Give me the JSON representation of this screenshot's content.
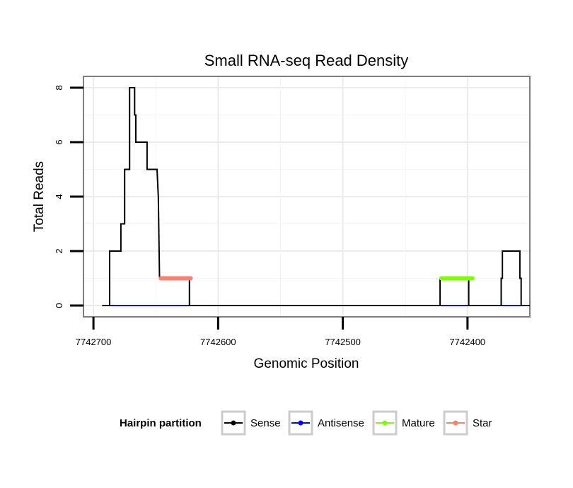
{
  "chart_data": {
    "type": "line",
    "title": "Small RNA-seq Read Density",
    "xlabel": "Genomic Position",
    "ylabel": "Total Reads",
    "x_reversed": true,
    "xlim": [
      7742708,
      7742350
    ],
    "ylim": [
      0,
      8
    ],
    "x_ticks": [
      7742700,
      7742600,
      7742500,
      7742400
    ],
    "x_tick_labels": [
      "7742700",
      "7742600",
      "7742500",
      "7742400"
    ],
    "y_ticks": [
      0,
      2,
      4,
      6,
      8
    ],
    "y_tick_labels": [
      "0",
      "2",
      "4",
      "6",
      "8"
    ],
    "grid": true,
    "legend": {
      "title": "Hairpin partition",
      "position": "bottom",
      "entries": [
        {
          "label": "Sense",
          "color": "#000000"
        },
        {
          "label": "Antisense",
          "color": "#0000ff"
        },
        {
          "label": "Mature",
          "color": "#7fff00"
        },
        {
          "label": "Star",
          "color": "#fa8072"
        }
      ]
    },
    "series": [
      {
        "name": "Sense",
        "color": "#000000",
        "x": [
          7742693,
          7742687,
          7742687,
          7742678,
          7742678,
          7742675,
          7742675,
          7742671,
          7742671,
          7742667,
          7742667,
          7742666,
          7742666,
          7742663,
          7742663,
          7742657,
          7742657,
          7742649,
          7742649,
          7742648,
          7742647,
          7742623,
          7742623,
          7742422,
          7742422,
          7742399,
          7742399,
          7742373,
          7742373,
          7742372,
          7742372,
          7742358,
          7742358,
          7742357,
          7742357,
          7742350
        ],
        "values": [
          0,
          0,
          2,
          2,
          3,
          3,
          5,
          5,
          8,
          8,
          7,
          7,
          6,
          6,
          6,
          6,
          5,
          5,
          5,
          4,
          1,
          1,
          0,
          0,
          1,
          1,
          0,
          0,
          1,
          1,
          2,
          2,
          1,
          1,
          0,
          0
        ]
      },
      {
        "name": "Antisense",
        "color": "#0000ff",
        "x": [
          7742687,
          7742623,
          7742422,
          7742399,
          7742373,
          7742357
        ],
        "values": [
          0,
          0,
          0,
          0,
          0,
          0
        ]
      },
      {
        "name": "Mature",
        "color": "#7fff00",
        "x": [
          7742421,
          7742396
        ],
        "values": [
          1,
          1
        ]
      },
      {
        "name": "Star",
        "color": "#fa8072",
        "x": [
          7742646,
          7742622
        ],
        "values": [
          1,
          1
        ]
      }
    ]
  }
}
